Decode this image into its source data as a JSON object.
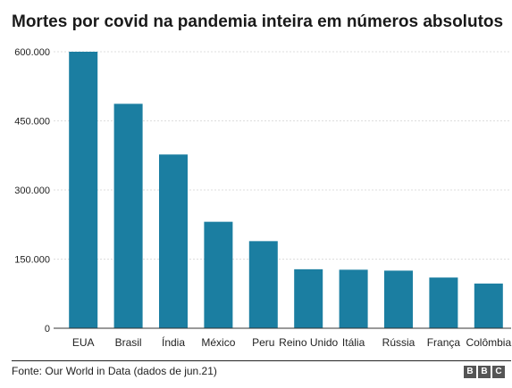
{
  "title": "Mortes por covid na pandemia inteira em números absolutos",
  "source": "Fonte: Our World in Data (dados de jun.21)",
  "logo": {
    "letters": [
      "B",
      "B",
      "C"
    ]
  },
  "colors": {
    "bar": "#1b7ea1",
    "grid": "#dddddd",
    "axis": "#333333",
    "text": "#222222"
  },
  "chart_data": {
    "type": "bar",
    "title": "Mortes por covid na pandemia inteira em números absolutos",
    "xlabel": "",
    "ylabel": "",
    "categories": [
      "EUA",
      "Brasil",
      "Índia",
      "México",
      "Peru",
      "Reino Unido",
      "Itália",
      "Rússia",
      "França",
      "Colômbia"
    ],
    "values": [
      600000,
      487000,
      377000,
      231000,
      189000,
      128000,
      127000,
      125000,
      110000,
      97000
    ],
    "ylim": [
      0,
      600000
    ],
    "yticks": [
      0,
      150000,
      300000,
      450000,
      600000
    ],
    "ytick_labels": [
      "0",
      "150.000",
      "300.000",
      "450.000",
      "600.000"
    ],
    "grid": true,
    "legend": "none"
  }
}
